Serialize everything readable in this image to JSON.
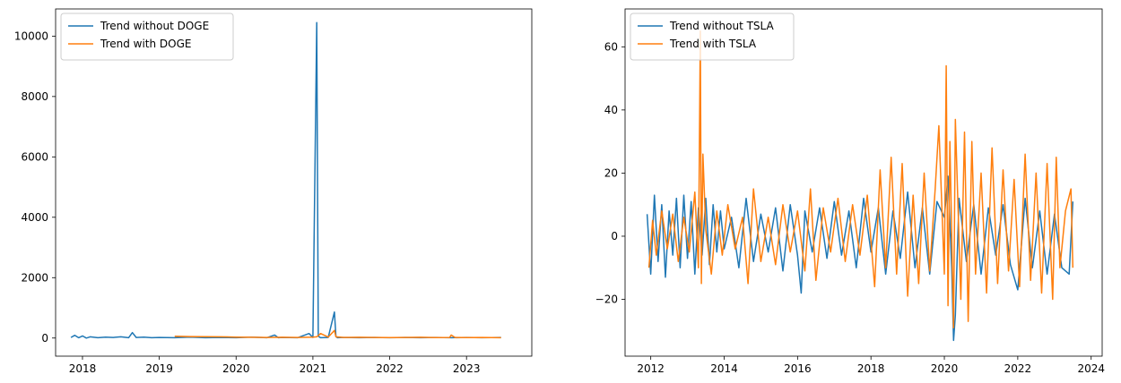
{
  "chart_data": [
    {
      "type": "line",
      "title": "",
      "xlabel": "",
      "ylabel": "",
      "x_ticks": [
        "2018",
        "2019",
        "2020",
        "2021",
        "2022",
        "2023"
      ],
      "x_tick_values": [
        2018,
        2019,
        2020,
        2021,
        2022,
        2023
      ],
      "xlim": [
        2017.65,
        2023.85
      ],
      "y_ticks": [
        "0",
        "2000",
        "4000",
        "6000",
        "8000",
        "10000"
      ],
      "y_tick_values": [
        0,
        2000,
        4000,
        6000,
        8000,
        10000
      ],
      "ylim": [
        -600,
        10900
      ],
      "legend_position": "top-left",
      "grid": false,
      "series": [
        {
          "name": "Trend without DOGE",
          "color": "#1f77b4",
          "x": [
            2017.85,
            2017.9,
            2017.95,
            2018.0,
            2018.05,
            2018.1,
            2018.2,
            2018.3,
            2018.4,
            2018.5,
            2018.6,
            2018.65,
            2018.7,
            2018.8,
            2018.9,
            2019.0,
            2019.2,
            2019.4,
            2019.6,
            2019.8,
            2020.0,
            2020.2,
            2020.4,
            2020.5,
            2020.55,
            2020.6,
            2020.8,
            2020.95,
            2021.0,
            2021.05,
            2021.07,
            2021.08,
            2021.1,
            2021.2,
            2021.28,
            2021.3,
            2021.32,
            2021.4,
            2021.6,
            2021.8,
            2022.0,
            2022.2,
            2022.4,
            2022.6,
            2022.8,
            2023.0,
            2023.2,
            2023.45
          ],
          "y": [
            20,
            90,
            10,
            70,
            0,
            40,
            10,
            30,
            20,
            40,
            10,
            180,
            20,
            30,
            10,
            20,
            10,
            30,
            10,
            20,
            10,
            30,
            10,
            100,
            10,
            20,
            10,
            150,
            20,
            10450,
            100,
            40,
            10,
            20,
            860,
            50,
            10,
            20,
            10,
            20,
            10,
            20,
            10,
            20,
            10,
            20,
            10,
            20
          ]
        },
        {
          "name": "Trend with DOGE",
          "color": "#ff7f0e",
          "x": [
            2019.2,
            2019.4,
            2019.6,
            2019.8,
            2020.0,
            2020.2,
            2020.4,
            2020.6,
            2020.8,
            2021.0,
            2021.05,
            2021.1,
            2021.2,
            2021.28,
            2021.3,
            2021.4,
            2021.6,
            2021.8,
            2022.0,
            2022.2,
            2022.4,
            2022.6,
            2022.78,
            2022.8,
            2022.85,
            2023.0,
            2023.2,
            2023.45
          ],
          "y": [
            60,
            50,
            45,
            40,
            30,
            25,
            20,
            25,
            20,
            30,
            40,
            150,
            30,
            250,
            40,
            20,
            25,
            20,
            15,
            20,
            25,
            15,
            20,
            100,
            20,
            15,
            20,
            10
          ]
        }
      ]
    },
    {
      "type": "line",
      "title": "",
      "xlabel": "",
      "ylabel": "",
      "x_ticks": [
        "2012",
        "2014",
        "2016",
        "2018",
        "2020",
        "2022",
        "2024"
      ],
      "x_tick_values": [
        2012,
        2014,
        2016,
        2018,
        2020,
        2022,
        2024
      ],
      "xlim": [
        2011.3,
        2024.3
      ],
      "y_ticks": [
        "−20",
        "0",
        "20",
        "40",
        "60"
      ],
      "y_tick_values": [
        -20,
        0,
        20,
        40,
        60
      ],
      "ylim": [
        -38,
        72
      ],
      "legend_position": "top-left",
      "grid": false,
      "series": [
        {
          "name": "Trend without TSLA",
          "color": "#1f77b4",
          "x": [
            2011.9,
            2012.0,
            2012.1,
            2012.2,
            2012.3,
            2012.4,
            2012.5,
            2012.6,
            2012.7,
            2012.8,
            2012.9,
            2013.0,
            2013.1,
            2013.2,
            2013.3,
            2013.4,
            2013.5,
            2013.6,
            2013.7,
            2013.8,
            2013.9,
            2014.0,
            2014.2,
            2014.4,
            2014.6,
            2014.8,
            2015.0,
            2015.2,
            2015.4,
            2015.6,
            2015.8,
            2016.0,
            2016.1,
            2016.2,
            2016.4,
            2016.6,
            2016.8,
            2017.0,
            2017.2,
            2017.4,
            2017.6,
            2017.8,
            2018.0,
            2018.2,
            2018.4,
            2018.6,
            2018.8,
            2019.0,
            2019.2,
            2019.4,
            2019.6,
            2019.8,
            2020.0,
            2020.1,
            2020.2,
            2020.25,
            2020.3,
            2020.4,
            2020.6,
            2020.8,
            2021.0,
            2021.2,
            2021.4,
            2021.6,
            2021.8,
            2022.0,
            2022.2,
            2022.4,
            2022.6,
            2022.8,
            2023.0,
            2023.2,
            2023.4,
            2023.5
          ],
          "y": [
            7,
            -12,
            13,
            -8,
            10,
            -13,
            8,
            -6,
            12,
            -10,
            13,
            -7,
            11,
            -12,
            9,
            -6,
            12,
            -9,
            10,
            -5,
            8,
            -4,
            6,
            -10,
            12,
            -8,
            7,
            -5,
            9,
            -11,
            10,
            -6,
            -18,
            8,
            -5,
            9,
            -7,
            11,
            -6,
            8,
            -10,
            12,
            -5,
            9,
            -12,
            8,
            -7,
            14,
            -10,
            9,
            -12,
            11,
            6,
            19,
            -10,
            -33,
            -25,
            12,
            -8,
            10,
            -12,
            9,
            -6,
            10,
            -9,
            -17,
            12,
            -10,
            8,
            -12,
            7,
            -10,
            -12,
            11
          ]
        },
        {
          "name": "Trend with TSLA",
          "color": "#ff7f0e",
          "x": [
            2011.95,
            2012.05,
            2012.15,
            2012.3,
            2012.45,
            2012.6,
            2012.75,
            2012.9,
            2013.05,
            2013.2,
            2013.3,
            2013.35,
            2013.38,
            2013.42,
            2013.5,
            2013.65,
            2013.8,
            2013.95,
            2014.1,
            2014.3,
            2014.5,
            2014.65,
            2014.8,
            2015.0,
            2015.2,
            2015.4,
            2015.6,
            2015.8,
            2016.0,
            2016.2,
            2016.35,
            2016.5,
            2016.7,
            2016.9,
            2017.1,
            2017.3,
            2017.5,
            2017.7,
            2017.9,
            2018.1,
            2018.25,
            2018.4,
            2018.55,
            2018.7,
            2018.85,
            2019.0,
            2019.15,
            2019.3,
            2019.45,
            2019.6,
            2019.75,
            2019.85,
            2020.0,
            2020.05,
            2020.1,
            2020.15,
            2020.25,
            2020.3,
            2020.45,
            2020.55,
            2020.65,
            2020.75,
            2020.85,
            2021.0,
            2021.15,
            2021.3,
            2021.45,
            2021.6,
            2021.75,
            2021.9,
            2022.05,
            2022.2,
            2022.35,
            2022.5,
            2022.65,
            2022.8,
            2022.95,
            2023.05,
            2023.15,
            2023.3,
            2023.45,
            2023.5
          ],
          "y": [
            -10,
            5,
            -6,
            8,
            -4,
            7,
            -8,
            6,
            -5,
            14,
            -10,
            65,
            -15,
            26,
            2,
            -12,
            8,
            -6,
            10,
            -4,
            6,
            -15,
            15,
            -8,
            6,
            -9,
            10,
            -5,
            8,
            -11,
            15,
            -14,
            9,
            -5,
            12,
            -8,
            10,
            -6,
            13,
            -16,
            21,
            -10,
            25,
            -12,
            23,
            -19,
            13,
            -15,
            20,
            -11,
            15,
            35,
            -12,
            54,
            -22,
            30,
            -29,
            37,
            -20,
            33,
            -27,
            30,
            -12,
            20,
            -18,
            28,
            -15,
            21,
            -11,
            18,
            -16,
            26,
            -14,
            20,
            -18,
            23,
            -20,
            25,
            -10,
            8,
            15,
            -10
          ]
        }
      ]
    }
  ]
}
